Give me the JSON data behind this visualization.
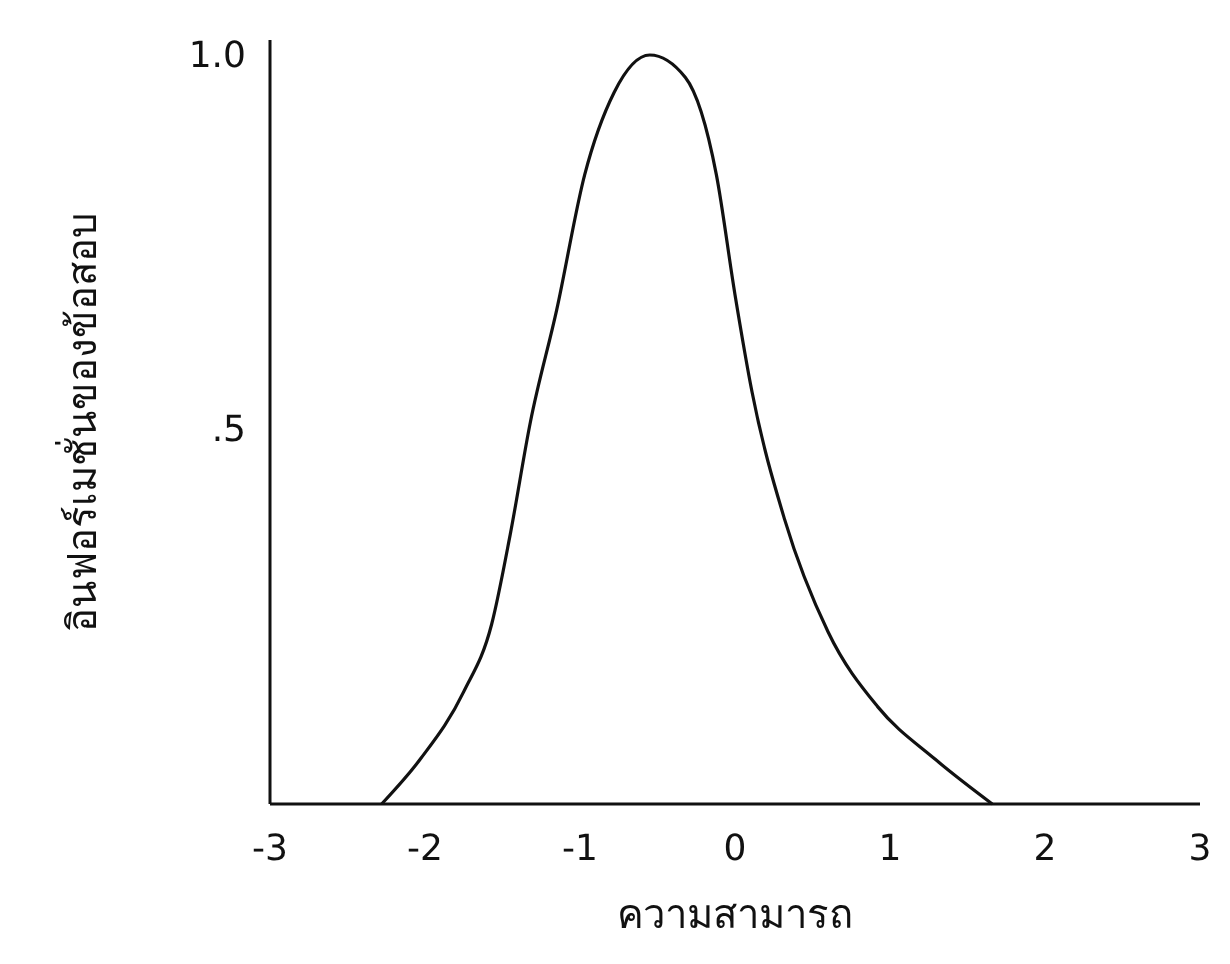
{
  "chart_data": {
    "type": "line",
    "xlabel": "ความสามารถ",
    "ylabel": "อินฟอร์เมชั่นของข้อสอบ",
    "xlim": [
      -3,
      3
    ],
    "ylim": [
      0,
      1.02
    ],
    "xticks": [
      -3,
      -2,
      -1,
      0,
      1,
      2,
      3
    ],
    "yticks": [
      {
        "value": 0.5,
        "label": ".5"
      },
      {
        "value": 1,
        "label": "1.0"
      }
    ],
    "x": [
      -2.28,
      -2.03,
      -1.75,
      -1.57,
      -1.45,
      -1.32,
      -1.15,
      -0.97,
      -0.78,
      -0.55,
      -0.32,
      -0.12,
      0.0,
      0.11,
      0.32,
      0.6,
      0.92,
      1.29,
      1.66
    ],
    "series": [
      {
        "color": "#111111",
        "values": [
          0,
          0.06,
          0.15,
          0.24,
          0.36,
          0.51,
          0.66,
          0.84,
          0.95,
          1.0,
          0.97,
          0.84,
          0.68,
          0.55,
          0.38,
          0.23,
          0.13,
          0.06,
          0
        ]
      }
    ],
    "grid": false,
    "marker": "none",
    "line_style": "solid"
  }
}
